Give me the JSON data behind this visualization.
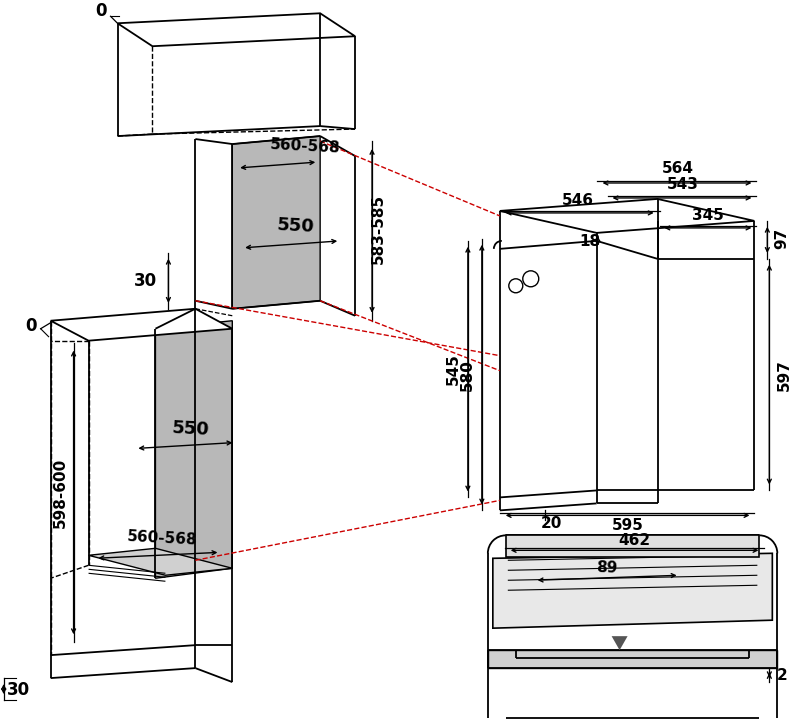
{
  "bg_color": "#ffffff",
  "line_color": "#000000",
  "red_dashed_color": "#cc0000",
  "annotations": {
    "dim_0_top": "0",
    "dim_0_left": "0",
    "dim_30_top": "30",
    "dim_30_bottom": "30",
    "dim_560_568_upper": "560-568",
    "dim_583_585": "583-585",
    "dim_550_upper": "550",
    "dim_550_lower": "550",
    "dim_560_568_lower": "560-568",
    "dim_598_600": "598-600",
    "dim_564": "564",
    "dim_543": "543",
    "dim_546": "546",
    "dim_345": "345",
    "dim_18": "18",
    "dim_97": "97",
    "dim_545": "545",
    "dim_580": "580",
    "dim_597": "597",
    "dim_595": "595",
    "dim_20": "20",
    "dim_462": "462",
    "dim_89": "89",
    "dim_2": "2"
  }
}
